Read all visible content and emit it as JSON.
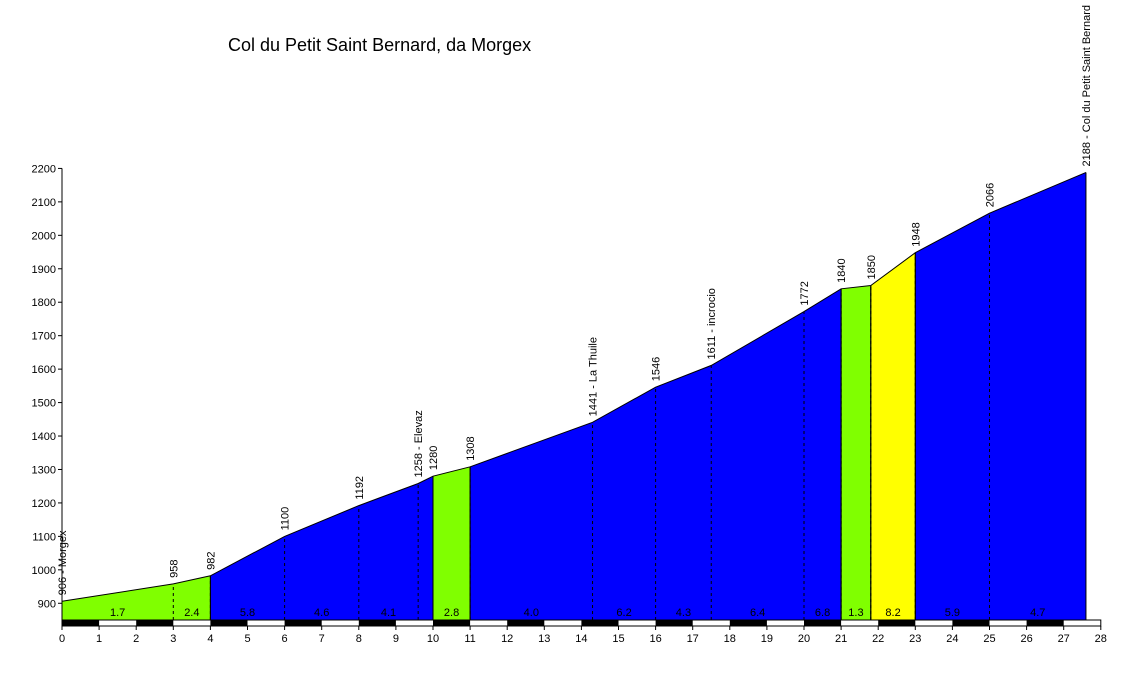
{
  "chart_data": {
    "type": "area",
    "title": "Col du Petit Saint Bernard, da Morgex",
    "xlabel": "",
    "ylabel": "",
    "xlim": [
      0,
      28
    ],
    "ylim": [
      850,
      2200
    ],
    "x_ticks": [
      0,
      1,
      2,
      3,
      4,
      5,
      6,
      7,
      8,
      9,
      10,
      11,
      12,
      13,
      14,
      15,
      16,
      17,
      18,
      19,
      20,
      21,
      22,
      23,
      24,
      25,
      26,
      27,
      28
    ],
    "y_ticks": [
      900,
      1000,
      1100,
      1200,
      1300,
      1400,
      1500,
      1600,
      1700,
      1800,
      1900,
      2000,
      2100,
      2200
    ],
    "profile": [
      {
        "x": 0,
        "y": 906,
        "label": "906 - Morgex",
        "marker": false
      },
      {
        "x": 3,
        "y": 958,
        "label": "958",
        "marker": true
      },
      {
        "x": 4,
        "y": 982,
        "label": "982",
        "marker": true
      },
      {
        "x": 6,
        "y": 1100,
        "label": "1100",
        "marker": true
      },
      {
        "x": 8,
        "y": 1192,
        "label": "1192",
        "marker": true
      },
      {
        "x": 9.6,
        "y": 1258,
        "label": "1258 - Elevaz",
        "marker": true
      },
      {
        "x": 10,
        "y": 1280,
        "label": "1280",
        "marker": true
      },
      {
        "x": 11,
        "y": 1308,
        "label": "1308",
        "marker": true
      },
      {
        "x": 14.3,
        "y": 1441,
        "label": "1441 - La Thuile",
        "marker": true
      },
      {
        "x": 16,
        "y": 1546,
        "label": "1546",
        "marker": true
      },
      {
        "x": 17.5,
        "y": 1611,
        "label": "1611 - incrocio",
        "marker": true
      },
      {
        "x": 20,
        "y": 1772,
        "label": "1772",
        "marker": true
      },
      {
        "x": 21,
        "y": 1840,
        "label": "1840",
        "marker": true
      },
      {
        "x": 21.8,
        "y": 1850,
        "label": "1850",
        "marker": true
      },
      {
        "x": 23,
        "y": 1948,
        "label": "1948",
        "marker": true
      },
      {
        "x": 25,
        "y": 2066,
        "label": "2066",
        "marker": true
      },
      {
        "x": 27.6,
        "y": 2188,
        "label": "2188 - Col du Petit Saint Bernard",
        "marker": false
      }
    ],
    "segments": [
      {
        "from": 0,
        "to": 4,
        "color": "#80ff00",
        "labels": [
          {
            "x": 1.5,
            "text": "1.7"
          },
          {
            "x": 3.5,
            "text": "2.4"
          }
        ]
      },
      {
        "from": 4,
        "to": 10,
        "color": "#0000ff",
        "labels": [
          {
            "x": 5,
            "text": "5.8"
          },
          {
            "x": 7,
            "text": "4.6"
          },
          {
            "x": 8.8,
            "text": "4.1"
          }
        ]
      },
      {
        "from": 10,
        "to": 11,
        "color": "#80ff00",
        "labels": [
          {
            "x": 10.5,
            "text": "2.8"
          }
        ]
      },
      {
        "from": 11,
        "to": 21,
        "color": "#0000ff",
        "labels": [
          {
            "x": 12.65,
            "text": "4.0"
          },
          {
            "x": 15.15,
            "text": "6.2"
          },
          {
            "x": 16.75,
            "text": "4.3"
          },
          {
            "x": 18.75,
            "text": "6.4"
          },
          {
            "x": 20.5,
            "text": "6.8"
          }
        ]
      },
      {
        "from": 21,
        "to": 21.8,
        "color": "#80ff00",
        "labels": [
          {
            "x": 21.4,
            "text": "1.3"
          }
        ]
      },
      {
        "from": 21.8,
        "to": 23,
        "color": "#ffff00",
        "labels": [
          {
            "x": 22.4,
            "text": "8.2"
          }
        ]
      },
      {
        "from": 23,
        "to": 27.6,
        "color": "#0000ff",
        "labels": [
          {
            "x": 24,
            "text": "5.9"
          },
          {
            "x": 26.3,
            "text": "4.7"
          }
        ]
      }
    ],
    "colors": {
      "uphill": "#0000ff",
      "moderate": "#80ff00",
      "steep": "#ffff00"
    },
    "grid": false,
    "legend": "none"
  }
}
